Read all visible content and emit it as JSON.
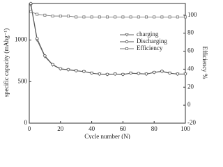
{
  "chart_data": {
    "type": "line",
    "x_label": "Cycle number (N)",
    "y_label": "specific capacity (mAhg⁻¹)",
    "y2_label": "Efficiency %",
    "x": [
      1,
      5,
      10,
      15,
      20,
      25,
      30,
      35,
      40,
      45,
      50,
      55,
      60,
      65,
      70,
      75,
      80,
      85,
      90,
      95,
      100
    ],
    "series": [
      {
        "name": "charging",
        "color": "#666666",
        "marker": "triangle",
        "values": [
          1420,
          1000,
          800,
          700,
          650,
          640,
          630,
          620,
          600,
          590,
          585,
          590,
          585,
          600,
          595,
          590,
          610,
          620,
          600,
          590,
          590
        ]
      },
      {
        "name": "Discharging",
        "color": "#555555",
        "marker": "circle",
        "values": [
          1440,
          1020,
          810,
          705,
          655,
          645,
          632,
          622,
          602,
          592,
          588,
          592,
          588,
          602,
          598,
          592,
          612,
          625,
          602,
          592,
          592
        ]
      },
      {
        "name": "Efficiency",
        "color": "#777777",
        "marker": "square",
        "axis": "y2",
        "values": [
          104,
          101,
          100,
          99,
          99,
          99,
          98,
          98,
          98,
          98,
          98,
          98,
          98,
          98,
          98,
          98,
          98,
          98,
          98,
          98,
          98
        ]
      }
    ],
    "xlim": [
      0,
      100
    ],
    "xticks": [
      0,
      20,
      40,
      60,
      80,
      100
    ],
    "ylim": [
      0,
      1440
    ],
    "yticks": [
      0,
      500,
      1000
    ],
    "y2lim": [
      -20,
      113
    ],
    "y2ticks": [
      -20,
      0,
      20,
      40,
      60,
      80,
      100
    ]
  }
}
